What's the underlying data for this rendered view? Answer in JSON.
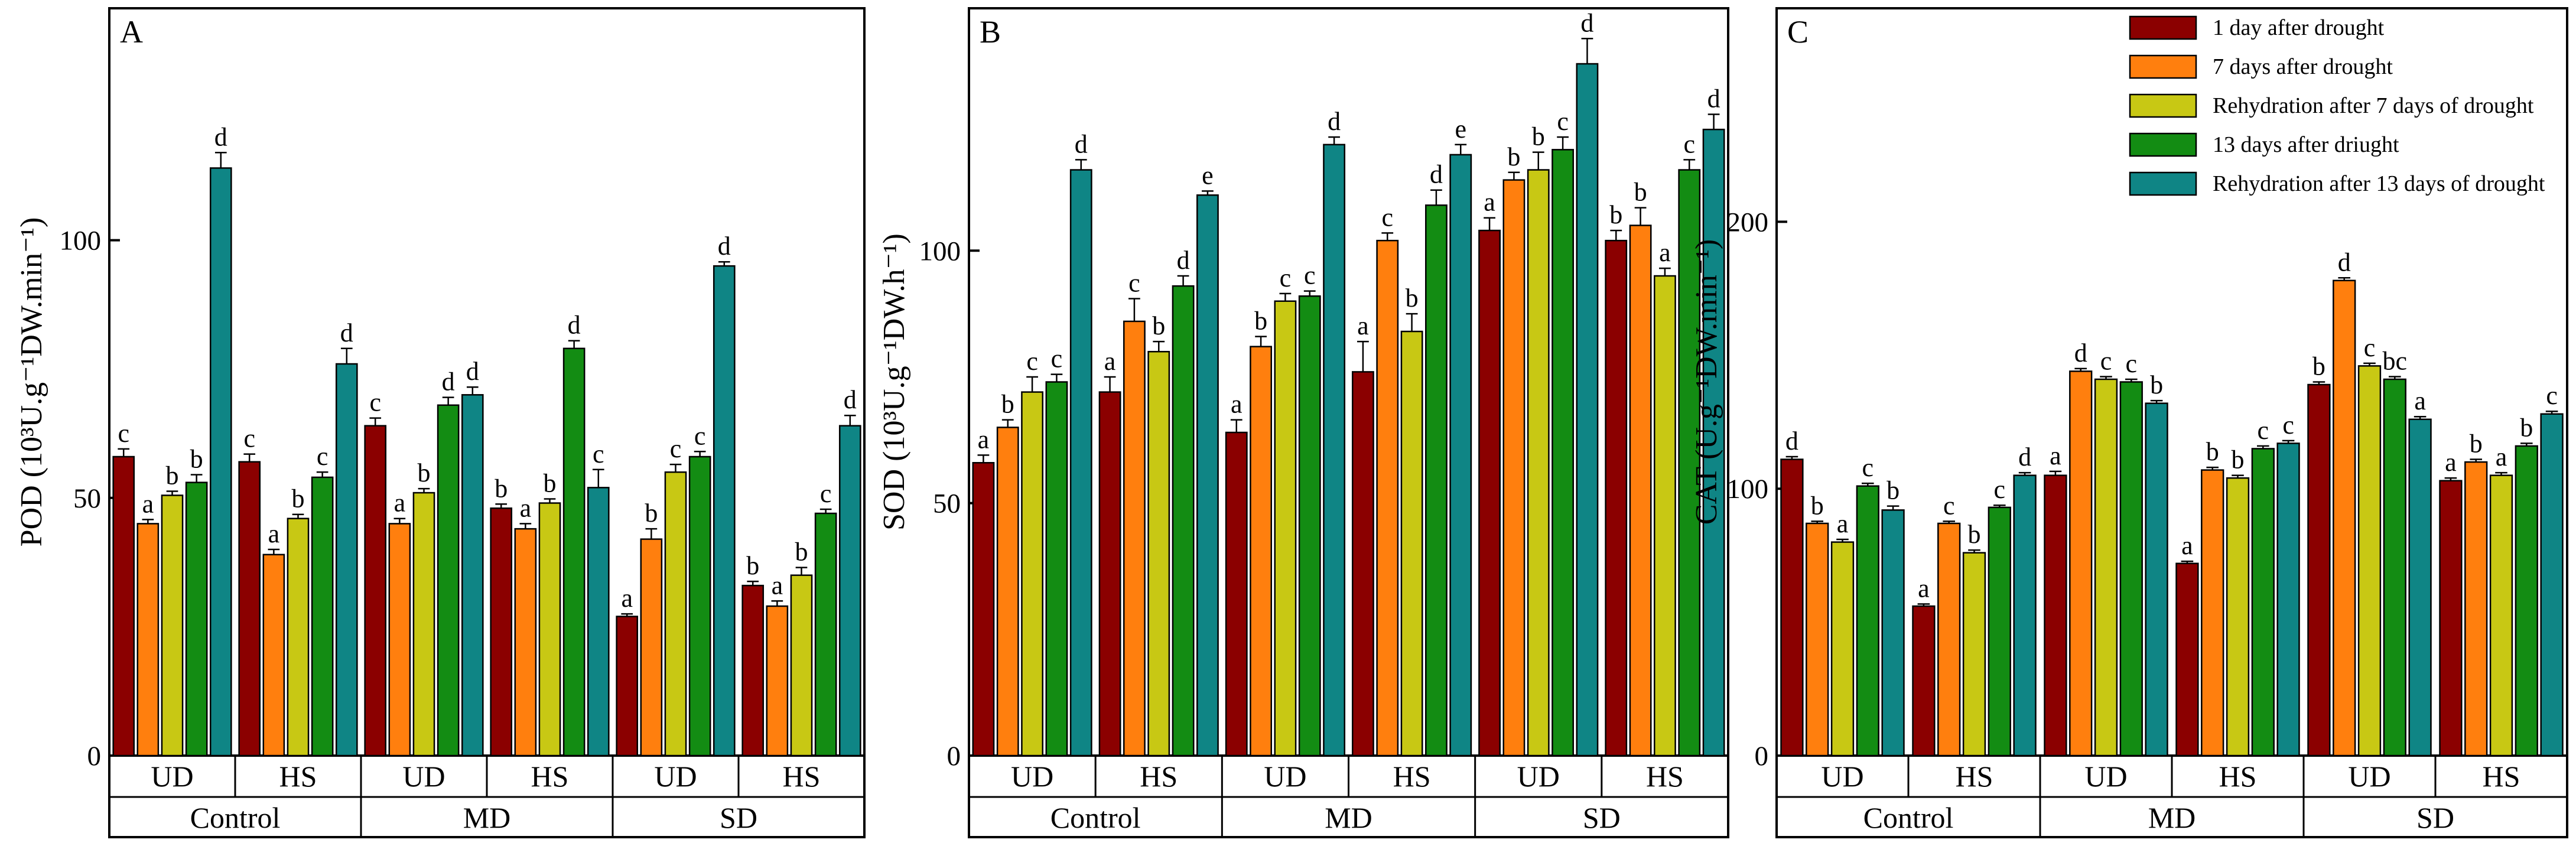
{
  "chart_data": [
    {
      "type": "bar",
      "panel": "A",
      "ylabel": "POD (10³U.g⁻¹DW.min⁻¹)",
      "ylim": [
        0,
        145
      ],
      "yticks": [
        0,
        50,
        100
      ],
      "groups": [
        {
          "treatment": "Control",
          "subgroups": [
            {
              "label": "UD",
              "values": [
                58,
                45,
                50.5,
                53,
                114
              ],
              "errors": [
                1.5,
                0.8,
                0.8,
                1.5,
                3
              ],
              "letters": [
                "c",
                "a",
                "b",
                "b",
                "d"
              ]
            },
            {
              "label": "HS",
              "values": [
                57,
                39,
                46,
                54,
                76
              ],
              "errors": [
                1.5,
                1,
                0.8,
                1,
                3
              ],
              "letters": [
                "c",
                "a",
                "b",
                "c",
                "d"
              ]
            }
          ]
        },
        {
          "treatment": "MD",
          "subgroups": [
            {
              "label": "UD",
              "values": [
                64,
                45,
                51,
                68,
                70
              ],
              "errors": [
                1.5,
                1,
                0.8,
                1.5,
                1.5
              ],
              "letters": [
                "c",
                "a",
                "b",
                "d",
                "d"
              ]
            },
            {
              "label": "HS",
              "values": [
                48,
                44,
                49,
                79,
                52
              ],
              "errors": [
                0.8,
                1,
                0.8,
                1.5,
                3.5
              ],
              "letters": [
                "b",
                "a",
                "b",
                "d",
                "c"
              ]
            }
          ]
        },
        {
          "treatment": "SD",
          "subgroups": [
            {
              "label": "UD",
              "values": [
                27,
                42,
                55,
                58,
                95
              ],
              "errors": [
                0.5,
                2,
                1.5,
                1,
                0.8
              ],
              "letters": [
                "a",
                "b",
                "c",
                "c",
                "d"
              ]
            },
            {
              "label": "HS",
              "values": [
                33,
                29,
                35,
                47,
                64
              ],
              "errors": [
                0.8,
                1,
                1.5,
                0.8,
                2
              ],
              "letters": [
                "b",
                "a",
                "b",
                "c",
                "d"
              ]
            }
          ]
        }
      ]
    },
    {
      "type": "bar",
      "panel": "B",
      "ylabel": "SOD (10³U.g⁻¹DW.h⁻¹)",
      "ylim": [
        0,
        148
      ],
      "yticks": [
        0,
        50,
        100
      ],
      "groups": [
        {
          "treatment": "Control",
          "subgroups": [
            {
              "label": "UD",
              "values": [
                58,
                65,
                72,
                74,
                116
              ],
              "errors": [
                1.5,
                1.5,
                3,
                1.5,
                2
              ],
              "letters": [
                "a",
                "b",
                "c",
                "c",
                "d"
              ]
            },
            {
              "label": "HS",
              "values": [
                72,
                86,
                80,
                93,
                111
              ],
              "errors": [
                3,
                4.5,
                2,
                2,
                0.8
              ],
              "letters": [
                "a",
                "c",
                "b",
                "d",
                "e"
              ]
            }
          ]
        },
        {
          "treatment": "MD",
          "subgroups": [
            {
              "label": "UD",
              "values": [
                64,
                81,
                90,
                91,
                121
              ],
              "errors": [
                2.5,
                2,
                1.5,
                1,
                1.5
              ],
              "letters": [
                "a",
                "b",
                "c",
                "c",
                "d"
              ]
            },
            {
              "label": "HS",
              "values": [
                76,
                102,
                84,
                109,
                119
              ],
              "errors": [
                6,
                1.5,
                3.5,
                3,
                2
              ],
              "letters": [
                "a",
                "c",
                "b",
                "d",
                "e"
              ]
            }
          ]
        },
        {
          "treatment": "SD",
          "subgroups": [
            {
              "label": "UD",
              "values": [
                104,
                114,
                116,
                120,
                137
              ],
              "errors": [
                2.5,
                1.5,
                3.5,
                2.5,
                5
              ],
              "letters": [
                "a",
                "b",
                "b",
                "c",
                "d"
              ]
            },
            {
              "label": "HS",
              "values": [
                102,
                105,
                95,
                116,
                124
              ],
              "errors": [
                2,
                3.5,
                1.5,
                2,
                3
              ],
              "letters": [
                "b",
                "b",
                "a",
                "c",
                "d"
              ]
            }
          ]
        }
      ]
    },
    {
      "type": "bar",
      "panel": "C",
      "ylabel": "CAT (U.g⁻¹DW.min⁻¹)",
      "ylim": [
        0,
        280
      ],
      "yticks": [
        0,
        100,
        200
      ],
      "groups": [
        {
          "treatment": "Control",
          "subgroups": [
            {
              "label": "UD",
              "values": [
                111,
                87,
                80,
                101,
                92
              ],
              "errors": [
                1,
                0.8,
                1,
                1,
                1.5
              ],
              "letters": [
                "d",
                "b",
                "a",
                "c",
                "b"
              ]
            },
            {
              "label": "HS",
              "values": [
                56,
                87,
                76,
                93,
                105
              ],
              "errors": [
                0.8,
                0.8,
                1,
                0.8,
                1
              ],
              "letters": [
                "a",
                "c",
                "b",
                "c",
                "d"
              ]
            }
          ]
        },
        {
          "treatment": "MD",
          "subgroups": [
            {
              "label": "UD",
              "values": [
                105,
                144,
                141,
                140,
                132
              ],
              "errors": [
                1.5,
                1,
                1,
                1,
                1
              ],
              "letters": [
                "a",
                "d",
                "c",
                "c",
                "b"
              ]
            },
            {
              "label": "HS",
              "values": [
                72,
                107,
                104,
                115,
                117
              ],
              "errors": [
                0.8,
                1,
                1,
                1,
                1
              ],
              "letters": [
                "a",
                "b",
                "b",
                "c",
                "c"
              ]
            }
          ]
        },
        {
          "treatment": "SD",
          "subgroups": [
            {
              "label": "UD",
              "values": [
                139,
                178,
                146,
                141,
                126
              ],
              "errors": [
                1,
                1,
                1,
                1,
                1
              ],
              "letters": [
                "b",
                "d",
                "c",
                "bc",
                "a"
              ]
            },
            {
              "label": "HS",
              "values": [
                103,
                110,
                105,
                116,
                128
              ],
              "errors": [
                1,
                1,
                1,
                1,
                1
              ],
              "letters": [
                "a",
                "b",
                "a",
                "b",
                "c"
              ]
            }
          ]
        }
      ]
    }
  ],
  "legend": [
    {
      "label": "1 day after drought",
      "color": "#8B0000"
    },
    {
      "label": "7 days after drought",
      "color": "#FF7F0E"
    },
    {
      "label": "Rehydration after 7 days of drought",
      "color": "#C8C814"
    },
    {
      "label": "13 days after driught",
      "color": "#138C13"
    },
    {
      "label": "Rehydration after 13 days of drought",
      "color": "#0F8585"
    }
  ]
}
